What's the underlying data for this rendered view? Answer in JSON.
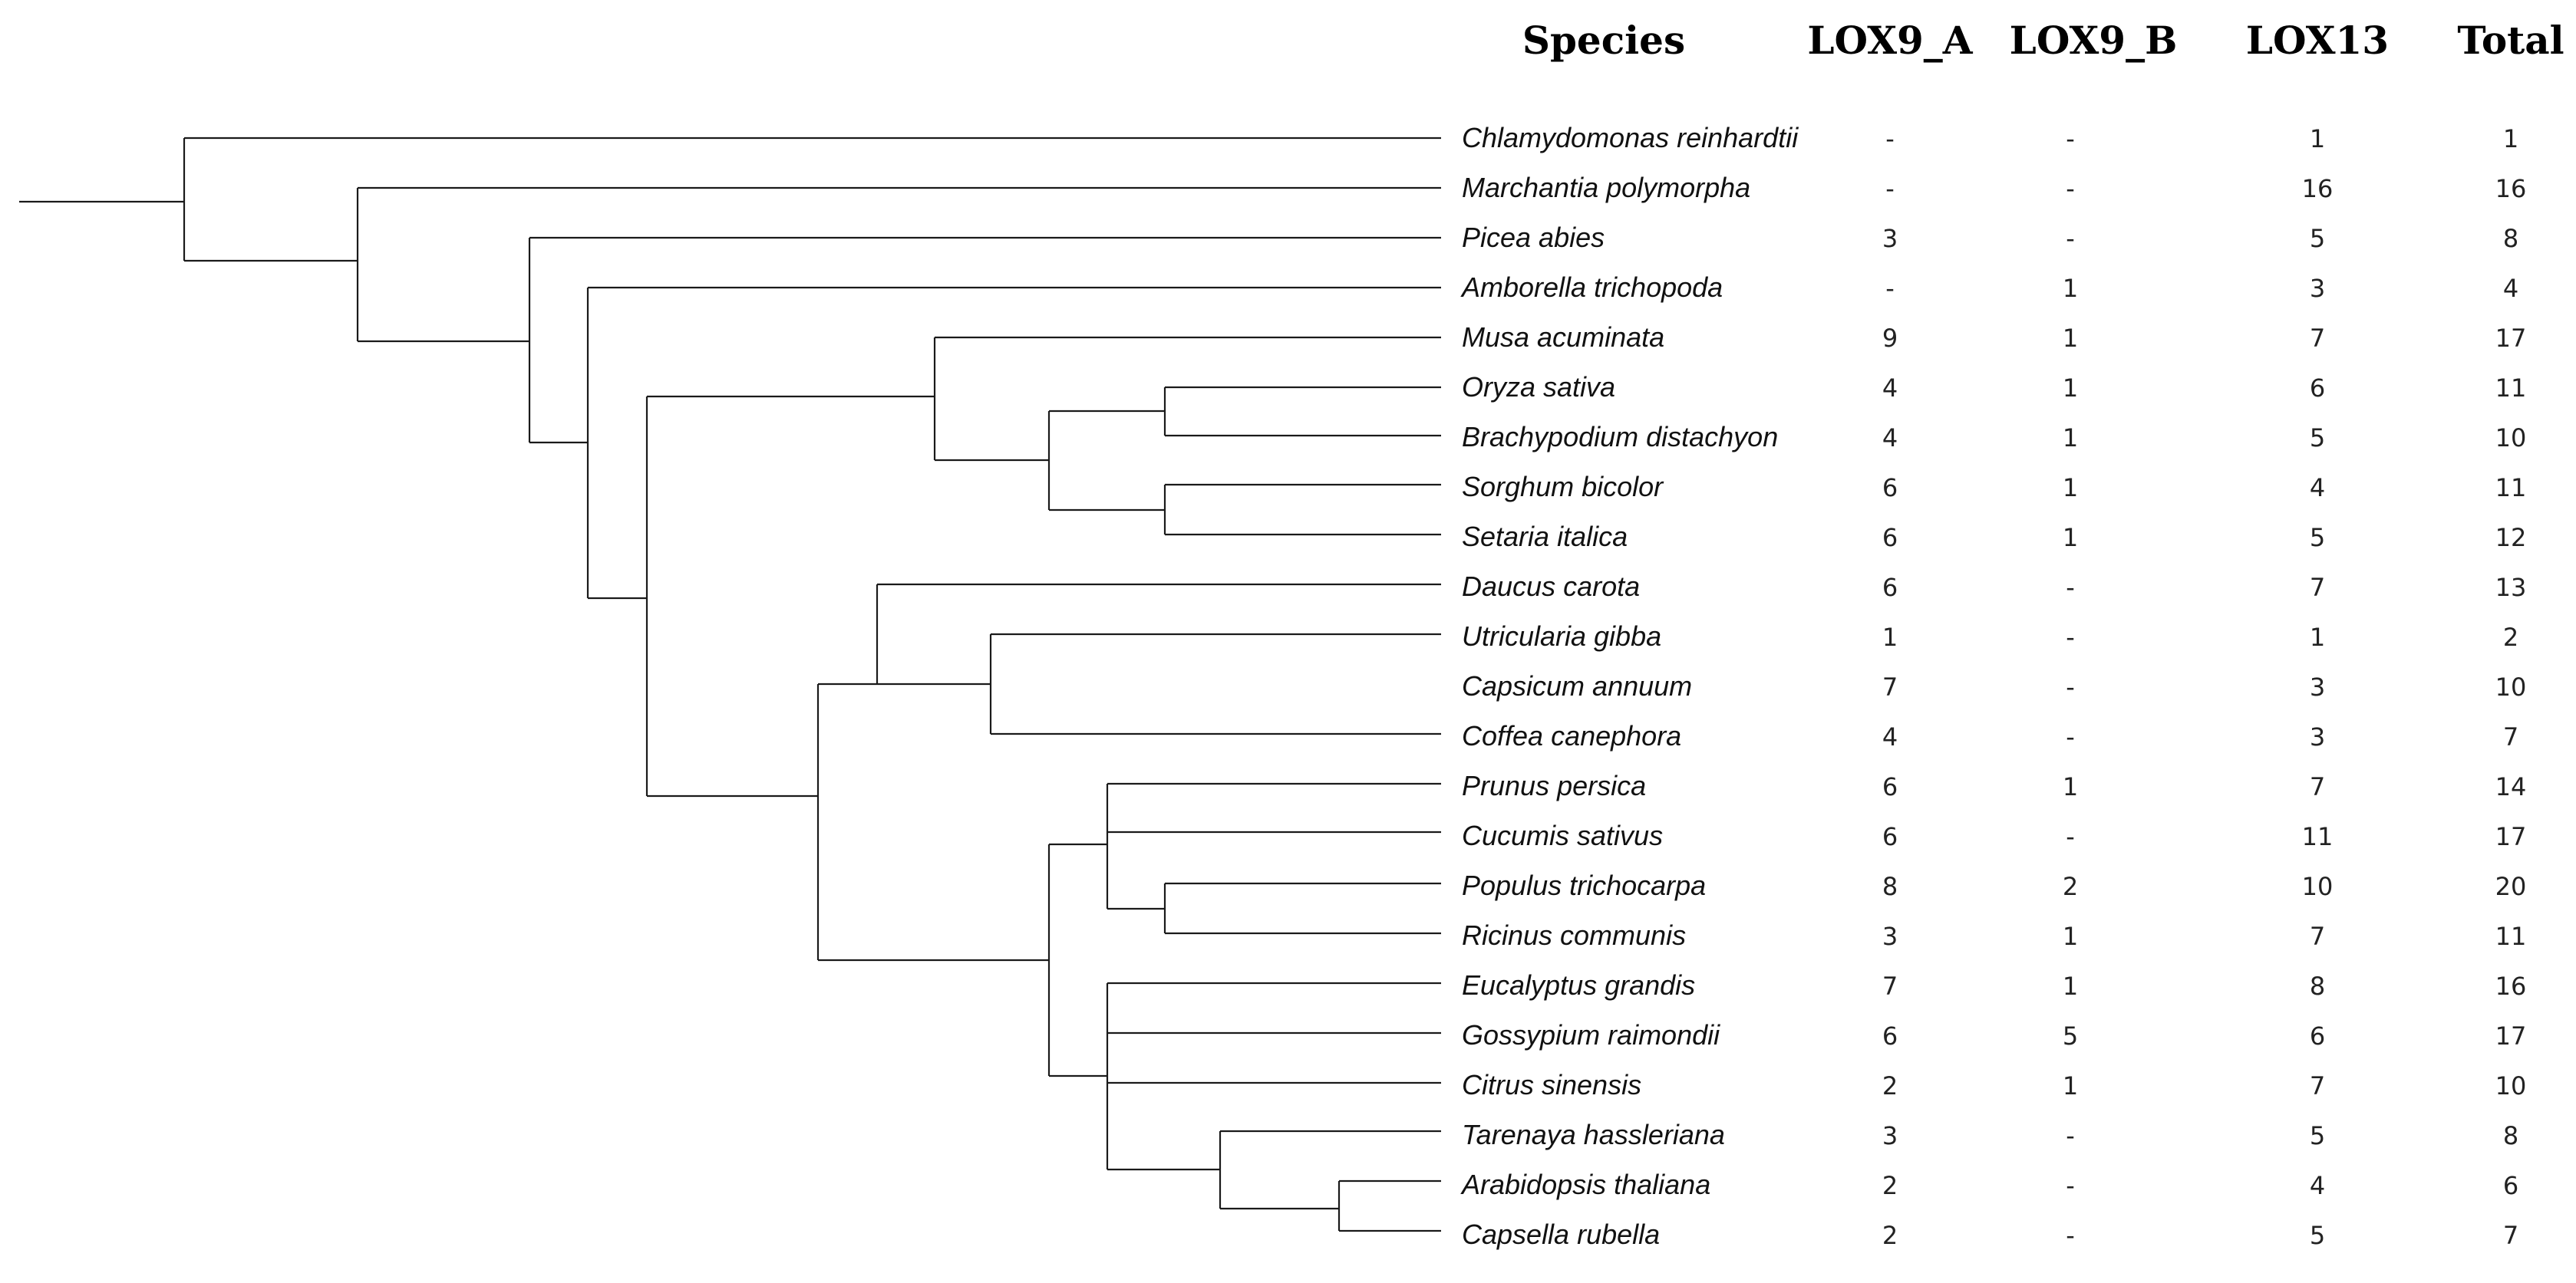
{
  "headers": {
    "species": "Species",
    "lox9a": "LOX9_A",
    "lox9b": "LOX9_B",
    "lox13": "LOX13",
    "total": "Total"
  },
  "rows": [
    {
      "species": "Chlamydomonas reinhardtii",
      "lox9a": "-",
      "lox9b": "-",
      "lox13": "1",
      "total": "1"
    },
    {
      "species": "Marchantia polymorpha",
      "lox9a": "-",
      "lox9b": "-",
      "lox13": "16",
      "total": "16"
    },
    {
      "species": "Picea abies",
      "lox9a": "3",
      "lox9b": "-",
      "lox13": "5",
      "total": "8"
    },
    {
      "species": "Amborella trichopoda",
      "lox9a": "-",
      "lox9b": "1",
      "lox13": "3",
      "total": "4"
    },
    {
      "species": "Musa acuminata",
      "lox9a": "9",
      "lox9b": "1",
      "lox13": "7",
      "total": "17"
    },
    {
      "species": "Oryza sativa",
      "lox9a": "4",
      "lox9b": "1",
      "lox13": "6",
      "total": "11"
    },
    {
      "species": "Brachypodium distachyon",
      "lox9a": "4",
      "lox9b": "1",
      "lox13": "5",
      "total": "10"
    },
    {
      "species": "Sorghum bicolor",
      "lox9a": "6",
      "lox9b": "1",
      "lox13": "4",
      "total": "11"
    },
    {
      "species": "Setaria  italica",
      "lox9a": "6",
      "lox9b": "1",
      "lox13": "5",
      "total": "12"
    },
    {
      "species": "Daucus carota",
      "lox9a": "6",
      "lox9b": "-",
      "lox13": "7",
      "total": "13"
    },
    {
      "species": "Utricularia gibba",
      "lox9a": "1",
      "lox9b": "-",
      "lox13": "1",
      "total": "2"
    },
    {
      "species": "Capsicum annuum",
      "lox9a": "7",
      "lox9b": "-",
      "lox13": "3",
      "total": "10"
    },
    {
      "species": "Coffea canephora",
      "lox9a": "4",
      "lox9b": "-",
      "lox13": "3",
      "total": "7"
    },
    {
      "species": "Prunus persica",
      "lox9a": "6",
      "lox9b": "1",
      "lox13": "7",
      "total": "14"
    },
    {
      "species": "Cucumis sativus",
      "lox9a": "6",
      "lox9b": "-",
      "lox13": "11",
      "total": "17"
    },
    {
      "species": "Populus trichocarpa",
      "lox9a": "8",
      "lox9b": "2",
      "lox13": "10",
      "total": "20"
    },
    {
      "species": "Ricinus communis",
      "lox9a": "3",
      "lox9b": "1",
      "lox13": "7",
      "total": "11"
    },
    {
      "species": "Eucalyptus grandis",
      "lox9a": "7",
      "lox9b": "1",
      "lox13": "8",
      "total": "16"
    },
    {
      "species": "Gossypium raimondii",
      "lox9a": "6",
      "lox9b": "5",
      "lox13": "6",
      "total": "17"
    },
    {
      "species": "Citrus sinensis",
      "lox9a": "2",
      "lox9b": "1",
      "lox13": "7",
      "total": "10"
    },
    {
      "species": "Tarenaya hassleriana",
      "lox9a": "3",
      "lox9b": "-",
      "lox13": "5",
      "total": "8"
    },
    {
      "species": "Arabidopsis thaliana",
      "lox9a": "2",
      "lox9b": "-",
      "lox13": "4",
      "total": "6"
    },
    {
      "species": "Capsella rubella",
      "lox9a": "2",
      "lox9b": "-",
      "lox13": "5",
      "total": "7"
    }
  ]
}
